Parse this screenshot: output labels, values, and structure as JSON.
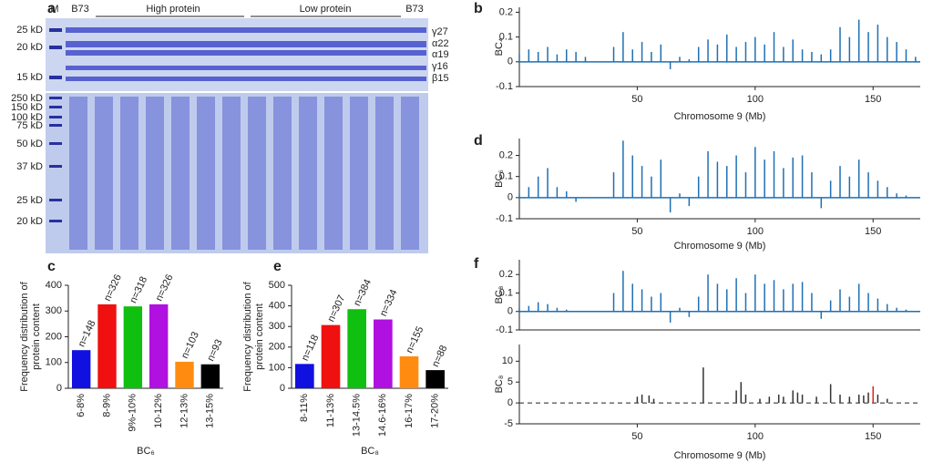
{
  "panel_labels": [
    "a",
    "b",
    "c",
    "d",
    "e",
    "f"
  ],
  "gel": {
    "lanes_top": [
      "M",
      "B73",
      "High protein",
      "Low protein",
      "B73"
    ],
    "markers_top": [
      "25 kD",
      "20 kD",
      "15 kD"
    ],
    "markers_bottom": [
      "250 kD",
      "150 kD",
      "100 kD",
      "75 kD",
      "50 kD",
      "37 kD",
      "25 kD",
      "20 kD"
    ],
    "proteins": [
      "γ27",
      "α22",
      "α19",
      "γ16",
      "β15"
    ]
  },
  "chart_data": [
    {
      "type": "stem",
      "y_label": "BC₄",
      "x_label": "Chromosome 9 (Mb)",
      "color": "#1f6fb4",
      "x": [
        0,
        4,
        8,
        12,
        16,
        20,
        24,
        28,
        32,
        36,
        40,
        44,
        48,
        52,
        56,
        60,
        64,
        68,
        72,
        76,
        80,
        84,
        88,
        92,
        96,
        100,
        104,
        108,
        112,
        116,
        120,
        124,
        128,
        132,
        136,
        140,
        144,
        148,
        152,
        156,
        160,
        164,
        168
      ],
      "values": [
        0.03,
        0.05,
        0.04,
        0.06,
        0.03,
        0.05,
        0.04,
        0.02,
        0,
        0,
        0.06,
        0.12,
        0.05,
        0.08,
        0.04,
        0.07,
        -0.03,
        0.02,
        0.01,
        0.06,
        0.09,
        0.07,
        0.11,
        0.06,
        0.08,
        0.1,
        0.07,
        0.12,
        0.06,
        0.09,
        0.05,
        0.04,
        0.03,
        0.05,
        0.14,
        0.1,
        0.17,
        0.12,
        0.15,
        0.1,
        0.08,
        0.05,
        0.02
      ],
      "xlim": [
        0,
        170
      ],
      "xticks": [
        50,
        100,
        150
      ],
      "ylim": [
        -0.1,
        0.22
      ],
      "yticks": [
        -0.1,
        0,
        0.1,
        0.2
      ]
    },
    {
      "type": "stem",
      "y_label": "BC₆",
      "x_label": "Chromosome 9 (Mb)",
      "color": "#1f6fb4",
      "x": [
        0,
        4,
        8,
        12,
        16,
        20,
        24,
        28,
        32,
        36,
        40,
        44,
        48,
        52,
        56,
        60,
        64,
        68,
        72,
        76,
        80,
        84,
        88,
        92,
        96,
        100,
        104,
        108,
        112,
        116,
        120,
        124,
        128,
        132,
        136,
        140,
        144,
        148,
        152,
        156,
        160,
        164,
        168
      ],
      "values": [
        0.02,
        0.05,
        0.1,
        0.14,
        0.05,
        0.03,
        -0.02,
        0,
        0,
        0,
        0.12,
        0.27,
        0.2,
        0.15,
        0.1,
        0.18,
        -0.07,
        0.02,
        -0.04,
        0.1,
        0.22,
        0.17,
        0.15,
        0.2,
        0.12,
        0.24,
        0.18,
        0.22,
        0.14,
        0.19,
        0.2,
        0.12,
        -0.05,
        0.08,
        0.15,
        0.1,
        0.18,
        0.12,
        0.08,
        0.05,
        0.02,
        0.01,
        0
      ],
      "xlim": [
        0,
        170
      ],
      "xticks": [
        50,
        100,
        150
      ],
      "ylim": [
        -0.1,
        0.28
      ],
      "yticks": [
        -0.1,
        0,
        0.1,
        0.2
      ]
    },
    {
      "type": "stem",
      "y_label": "BC₈",
      "color": "#1f6fb4",
      "x": [
        0,
        4,
        8,
        12,
        16,
        20,
        24,
        28,
        32,
        36,
        40,
        44,
        48,
        52,
        56,
        60,
        64,
        68,
        72,
        76,
        80,
        84,
        88,
        92,
        96,
        100,
        104,
        108,
        112,
        116,
        120,
        124,
        128,
        132,
        136,
        140,
        144,
        148,
        152,
        156,
        160,
        164,
        168
      ],
      "values": [
        0.02,
        0.03,
        0.05,
        0.04,
        0.02,
        0.01,
        0,
        0,
        0,
        0,
        0.1,
        0.22,
        0.15,
        0.12,
        0.08,
        0.1,
        -0.06,
        0.02,
        -0.03,
        0.08,
        0.2,
        0.15,
        0.12,
        0.18,
        0.1,
        0.2,
        0.15,
        0.17,
        0.12,
        0.15,
        0.16,
        0.1,
        -0.04,
        0.06,
        0.12,
        0.08,
        0.15,
        0.1,
        0.07,
        0.04,
        0.02,
        0.01,
        0
      ],
      "xlim": [
        0,
        170
      ],
      "ylim": [
        -0.1,
        0.28
      ],
      "yticks": [
        -0.1,
        0,
        0.1,
        0.2
      ]
    },
    {
      "type": "stem",
      "y_label": "BC₈",
      "x_label": "Chromosome 9 (Mb)",
      "zero_line": "dashed",
      "x": [
        50,
        52,
        55,
        57,
        78,
        92,
        94,
        96,
        102,
        106,
        110,
        112,
        116,
        118,
        120,
        126,
        132,
        136,
        140,
        144,
        146,
        148,
        150,
        152,
        156
      ],
      "values": [
        1.5,
        2,
        1.8,
        1,
        8.5,
        3,
        5,
        2,
        1,
        1.5,
        2,
        1.5,
        3,
        2.5,
        2,
        1.5,
        4.5,
        2,
        1.5,
        2,
        1.8,
        2.5,
        4,
        2,
        1
      ],
      "colors": [
        "#333",
        "#333",
        "#333",
        "#333",
        "#333",
        "#333",
        "#333",
        "#333",
        "#333",
        "#333",
        "#333",
        "#333",
        "#333",
        "#333",
        "#333",
        "#333",
        "#333",
        "#333",
        "#333",
        "#333",
        "#333",
        "#333",
        "#e02020",
        "#333",
        "#333"
      ],
      "xlim": [
        0,
        170
      ],
      "xticks": [
        50,
        100,
        150
      ],
      "ylim": [
        -5,
        14
      ],
      "yticks": [
        -5,
        0,
        5,
        10
      ]
    },
    {
      "type": "bar",
      "y_label": [
        "Frequency distribution of",
        "protein content"
      ],
      "x_label": "BC₆",
      "categories": [
        "6-8%",
        "8-9%",
        "9%-10%",
        "10-12%",
        "12-13%",
        "13-15%"
      ],
      "values": [
        148,
        326,
        318,
        326,
        103,
        93
      ],
      "value_labels": [
        "n=148",
        "n=326",
        "n=318",
        "n=326",
        "n=103",
        "n=93"
      ],
      "colors": [
        "#1010e0",
        "#f01010",
        "#10c010",
        "#b010e0",
        "#ff8c10",
        "#000000"
      ],
      "ylim": [
        0,
        400
      ],
      "yticks": [
        0,
        100,
        200,
        300,
        400
      ]
    },
    {
      "type": "bar",
      "y_label": [
        "Frequency distribution of",
        "protein content"
      ],
      "x_label": "BC₈",
      "categories": [
        "8-11%",
        "11-13%",
        "13-14.5%",
        "14.6-16%",
        "16-17%",
        "17-20%"
      ],
      "values": [
        118,
        307,
        384,
        334,
        155,
        88
      ],
      "value_labels": [
        "n=118",
        "n=307",
        "n=384",
        "n=334",
        "n=155",
        "n=88"
      ],
      "colors": [
        "#1010e0",
        "#f01010",
        "#10c010",
        "#b010e0",
        "#ff8c10",
        "#000000"
      ],
      "ylim": [
        0,
        500
      ],
      "yticks": [
        0,
        100,
        200,
        300,
        400,
        500
      ]
    }
  ]
}
